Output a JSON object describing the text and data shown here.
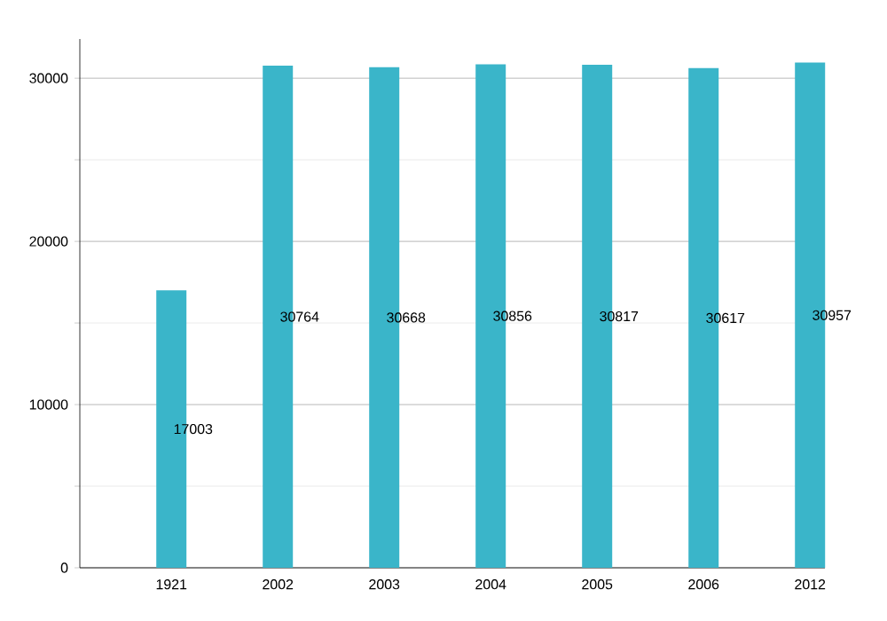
{
  "chart_data": {
    "type": "bar",
    "categories": [
      "1921",
      "2002",
      "2003",
      "2004",
      "2005",
      "2006",
      "2012"
    ],
    "values": [
      17003,
      30764,
      30668,
      30856,
      30817,
      30617,
      30957
    ],
    "value_labels": [
      "17003",
      "30764",
      "30668",
      "30856",
      "30817",
      "30617",
      "30957"
    ],
    "color": "#3ab5c9",
    "ylim": [
      0,
      32400
    ],
    "yticks": [
      0,
      10000,
      20000,
      30000
    ],
    "grid": "y"
  }
}
